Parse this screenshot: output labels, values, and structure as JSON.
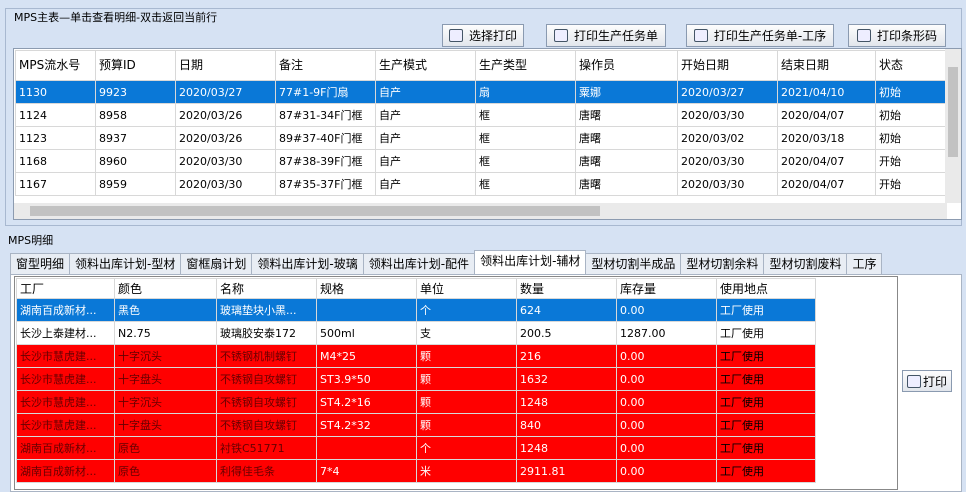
{
  "master": {
    "title": "MPS主表—单击查看明细-双击返回当前行",
    "buttons": [
      "选择打印",
      "打印生产任务单",
      "打印生产任务单-工序",
      "打印条形码"
    ],
    "table": {
      "headers": [
        "MPS流水号",
        "预算ID",
        "日期",
        "备注",
        "生产模式",
        "生产类型",
        "操作员",
        "开始日期",
        "结束日期",
        "状态"
      ],
      "rows": [
        [
          "1130",
          "9923",
          "2020/03/27",
          "77#1-9F门扇",
          "自产",
          "扇",
          "粟娜",
          "2020/03/27",
          "2021/04/10",
          "初始"
        ],
        [
          "1124",
          "8958",
          "2020/03/26",
          "87#31-34F门框",
          "自产",
          "框",
          "唐曙",
          "2020/03/30",
          "2020/04/07",
          "初始"
        ],
        [
          "1123",
          "8937",
          "2020/03/26",
          "89#37-40F门框",
          "自产",
          "框",
          "唐曙",
          "2020/03/02",
          "2020/03/18",
          "初始"
        ],
        [
          "1168",
          "8960",
          "2020/03/30",
          "87#38-39F门框",
          "自产",
          "框",
          "唐曙",
          "2020/03/30",
          "2020/04/07",
          "开始"
        ],
        [
          "1167",
          "8959",
          "2020/03/30",
          "87#35-37F门框",
          "自产",
          "框",
          "唐曙",
          "2020/03/30",
          "2020/04/07",
          "开始"
        ]
      ]
    }
  },
  "detail": {
    "title": "MPS明细",
    "tabs": [
      "窗型明细",
      "领料出库计划-型材",
      "窗框扇计划",
      "领料出库计划-玻璃",
      "领料出库计划-配件",
      "领料出库计划-辅材",
      "型材切割半成品",
      "型材切割余料",
      "型材切割废料",
      "工序"
    ],
    "table": {
      "headers": [
        "工厂",
        "颜色",
        "名称",
        "规格",
        "单位",
        "数量",
        "库存量",
        "使用地点"
      ],
      "rows": [
        [
          "湖南百成新材...",
          "黑色",
          "玻璃垫块小黑...",
          null,
          "个",
          "624",
          "0.00",
          "工厂使用"
        ],
        [
          "长沙上泰建材...",
          "N2.75",
          "玻璃胶安泰172",
          "500ml",
          "支",
          "200.5",
          "1287.00",
          "工厂使用"
        ],
        [
          "长沙市慧虎建...",
          "十字沉头",
          "不锈钢机制螺钉",
          "M4*25",
          "颗",
          "216",
          "0.00",
          "工厂使用"
        ],
        [
          "长沙市慧虎建...",
          "十字盘头",
          "不锈钢自攻螺钉",
          "ST3.9*50",
          "颗",
          "1632",
          "0.00",
          "工厂使用"
        ],
        [
          "长沙市慧虎建...",
          "十字沉头",
          "不锈钢自攻螺钉",
          "ST4.2*16",
          "颗",
          "1248",
          "0.00",
          "工厂使用"
        ],
        [
          "长沙市慧虎建...",
          "十字盘头",
          "不锈钢自攻螺钉",
          "ST4.2*32",
          "颗",
          "840",
          "0.00",
          "工厂使用"
        ],
        [
          "湖南百成新材...",
          "原色",
          "衬铁C51771",
          null,
          "个",
          "1248",
          "0.00",
          "工厂使用"
        ],
        [
          "湖南百成新材...",
          "原色",
          "利得佳毛条",
          "7*4",
          "米",
          "2911.81",
          "0.00",
          "工厂使用"
        ]
      ]
    },
    "print_button": "打印"
  }
}
